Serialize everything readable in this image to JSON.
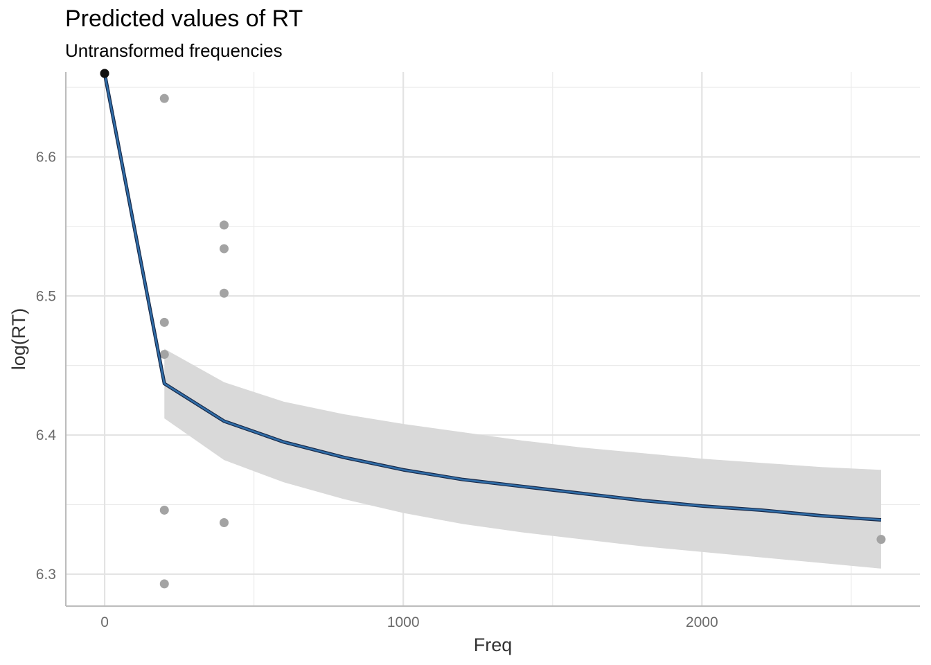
{
  "chart_data": {
    "type": "line",
    "title": "Predicted values of RT",
    "subtitle": "Untransformed frequencies",
    "xlabel": "Freq",
    "ylabel": "log(RT)",
    "xlim": [
      -130,
      2730
    ],
    "ylim": [
      6.277,
      6.661
    ],
    "x_ticks": [
      0,
      1000,
      2000
    ],
    "x_tick_labels": [
      "0",
      "1000",
      "2000"
    ],
    "x_minor_ticks": [
      500,
      1500,
      2500
    ],
    "y_ticks": [
      6.3,
      6.4,
      6.5,
      6.6
    ],
    "y_tick_labels": [
      "6.3",
      "6.4",
      "6.5",
      "6.6"
    ],
    "y_minor_ticks": [
      6.35,
      6.45,
      6.55,
      6.65
    ],
    "grid": true,
    "series": [
      {
        "type": "line",
        "color": "#2f6da8",
        "x": [
          0,
          200,
          400,
          600,
          800,
          1000,
          1200,
          1400,
          1600,
          1800,
          2000,
          2200,
          2400,
          2600
        ],
        "y": [
          6.66,
          6.437,
          6.41,
          6.395,
          6.384,
          6.375,
          6.368,
          6.363,
          6.358,
          6.353,
          6.349,
          6.346,
          6.342,
          6.339
        ]
      }
    ],
    "confidence_band": {
      "color": "#d9d9d9",
      "x": [
        200,
        400,
        600,
        800,
        1000,
        1200,
        1400,
        1600,
        1800,
        2000,
        2200,
        2400,
        2600
      ],
      "lower": [
        6.412,
        6.382,
        6.366,
        6.354,
        6.344,
        6.336,
        6.33,
        6.325,
        6.32,
        6.316,
        6.312,
        6.308,
        6.304
      ],
      "upper": [
        6.462,
        6.438,
        6.424,
        6.415,
        6.408,
        6.402,
        6.396,
        6.391,
        6.387,
        6.383,
        6.38,
        6.377,
        6.375
      ]
    },
    "points": {
      "color": "#a3a3a3",
      "x": [
        0,
        200,
        200,
        200,
        200,
        200,
        400,
        400,
        400,
        400,
        2600
      ],
      "y": [
        6.66,
        6.642,
        6.481,
        6.458,
        6.346,
        6.293,
        6.551,
        6.534,
        6.502,
        6.337,
        6.325
      ]
    }
  }
}
